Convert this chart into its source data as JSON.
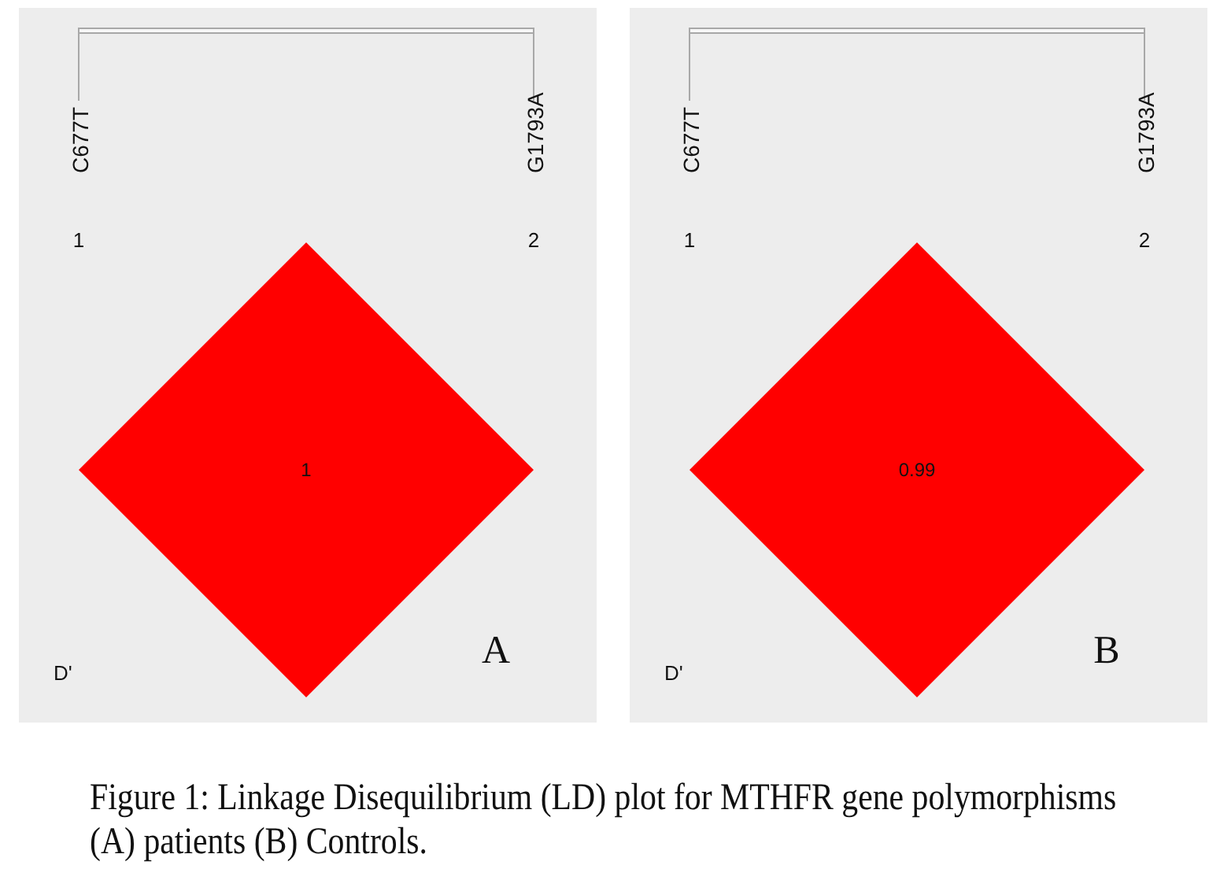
{
  "chart_data": [
    {
      "type": "other",
      "title": "A",
      "categories": [
        "C677T",
        "G1793A"
      ],
      "values": [
        null,
        1
      ],
      "color": "#ff0000",
      "data_labels": true,
      "annotations": [
        {
          "text": "1",
          "x": "C677T"
        },
        {
          "text": "2",
          "x": "G1793A"
        },
        "D'"
      ]
    },
    {
      "type": "other",
      "title": "B",
      "categories": [
        "C677T",
        "G1793A"
      ],
      "values": [
        null,
        0.99
      ],
      "color": "#ff0000",
      "data_labels": true,
      "annotations": [
        {
          "text": "1",
          "x": "C677T"
        },
        {
          "text": "2",
          "x": "G1793A"
        },
        "D'"
      ]
    },
    {
      "type": "other",
      "annotations": [
        "Figure 1: Linkage Disequilibrium (LD) plot for MTHFR gene polymorphisms",
        "(A) patients (B) Controls."
      ]
    }
  ]
}
